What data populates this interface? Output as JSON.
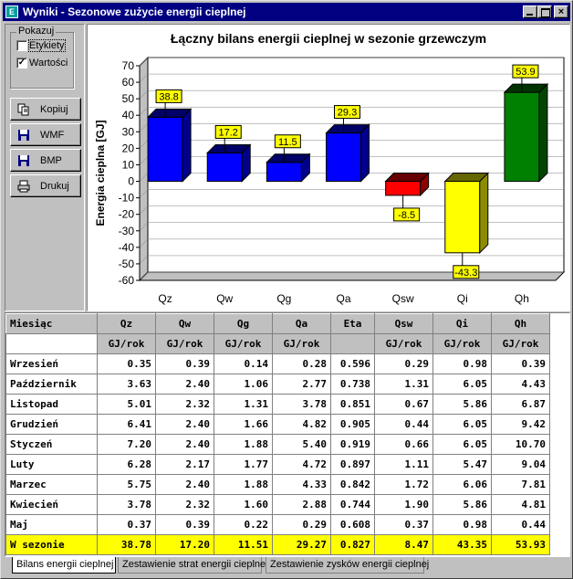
{
  "window": {
    "title": "Wyniki - Sezonowe zużycie energii cieplnej",
    "app_icon": "E",
    "close_glyph": "×"
  },
  "options": {
    "group_label": "Pokazuj",
    "checkboxes": [
      {
        "label": "Etykiety",
        "checked": false,
        "mark": ""
      },
      {
        "label": "Wartości",
        "checked": true,
        "mark": "✓"
      }
    ]
  },
  "buttons": [
    {
      "label": "Kopiuj",
      "icon": "copy-icon"
    },
    {
      "label": "WMF",
      "icon": "floppy-disk-icon"
    },
    {
      "label": "BMP",
      "icon": "floppy-disk-icon"
    },
    {
      "label": "Drukuj",
      "icon": "printer-icon"
    }
  ],
  "chart_data": {
    "type": "bar",
    "title": "Łączny bilans energii cieplnej w sezonie grzewczym",
    "ylabel": "Energia cieplna [GJ]",
    "xlabel": "",
    "categories": [
      "Qz",
      "Qw",
      "Qg",
      "Qa",
      "Qsw",
      "Qi",
      "Qh"
    ],
    "values": [
      38.8,
      17.2,
      11.5,
      29.3,
      -8.5,
      -43.3,
      53.9
    ],
    "value_labels": [
      "38.8",
      "17.2",
      "11.5",
      "29.3",
      "-8.5",
      "-43.3",
      "53.9"
    ],
    "colors": [
      "#0000ff",
      "#0000ff",
      "#0000ff",
      "#0000ff",
      "#ff0000",
      "#ffff00",
      "#008000"
    ],
    "ylim": [
      -60,
      70
    ],
    "yticks": [
      70,
      60,
      50,
      40,
      30,
      20,
      10,
      0,
      -10,
      -20,
      -30,
      -40,
      -50,
      -60
    ],
    "grid": true,
    "label_color": "#ffff00"
  },
  "table": {
    "headers": [
      "Miesiąc",
      "Qz",
      "Qw",
      "Qg",
      "Qa",
      "Eta",
      "Qsw",
      "Qi",
      "Qh"
    ],
    "units": [
      "",
      "GJ/rok",
      "GJ/rok",
      "GJ/rok",
      "GJ/rok",
      "",
      "GJ/rok",
      "GJ/rok",
      "GJ/rok"
    ],
    "rows": [
      [
        "Wrzesień",
        "0.35",
        "0.39",
        "0.14",
        "0.28",
        "0.596",
        "0.29",
        "0.98",
        "0.39"
      ],
      [
        "Październik",
        "3.63",
        "2.40",
        "1.06",
        "2.77",
        "0.738",
        "1.31",
        "6.05",
        "4.43"
      ],
      [
        "Listopad",
        "5.01",
        "2.32",
        "1.31",
        "3.78",
        "0.851",
        "0.67",
        "5.86",
        "6.87"
      ],
      [
        "Grudzień",
        "6.41",
        "2.40",
        "1.66",
        "4.82",
        "0.905",
        "0.44",
        "6.05",
        "9.42"
      ],
      [
        "Styczeń",
        "7.20",
        "2.40",
        "1.88",
        "5.40",
        "0.919",
        "0.66",
        "6.05",
        "10.70"
      ],
      [
        "Luty",
        "6.28",
        "2.17",
        "1.77",
        "4.72",
        "0.897",
        "1.11",
        "5.47",
        "9.04"
      ],
      [
        "Marzec",
        "5.75",
        "2.40",
        "1.88",
        "4.33",
        "0.842",
        "1.72",
        "6.06",
        "7.81"
      ],
      [
        "Kwiecień",
        "3.78",
        "2.32",
        "1.60",
        "2.88",
        "0.744",
        "1.90",
        "5.86",
        "4.81"
      ],
      [
        "Maj",
        "0.37",
        "0.39",
        "0.22",
        "0.29",
        "0.608",
        "0.37",
        "0.98",
        "0.44"
      ]
    ],
    "total": [
      "W sezonie",
      "38.78",
      "17.20",
      "11.51",
      "29.27",
      "0.827",
      "8.47",
      "43.35",
      "53.93"
    ],
    "total_color": "#ffff00"
  },
  "tabs": [
    {
      "label": "Bilans energii cieplnej",
      "active": true
    },
    {
      "label": "Zestawienie strat energii cieplnej",
      "active": false
    },
    {
      "label": "Zestawienie zysków energii cieplnej",
      "active": false
    }
  ]
}
